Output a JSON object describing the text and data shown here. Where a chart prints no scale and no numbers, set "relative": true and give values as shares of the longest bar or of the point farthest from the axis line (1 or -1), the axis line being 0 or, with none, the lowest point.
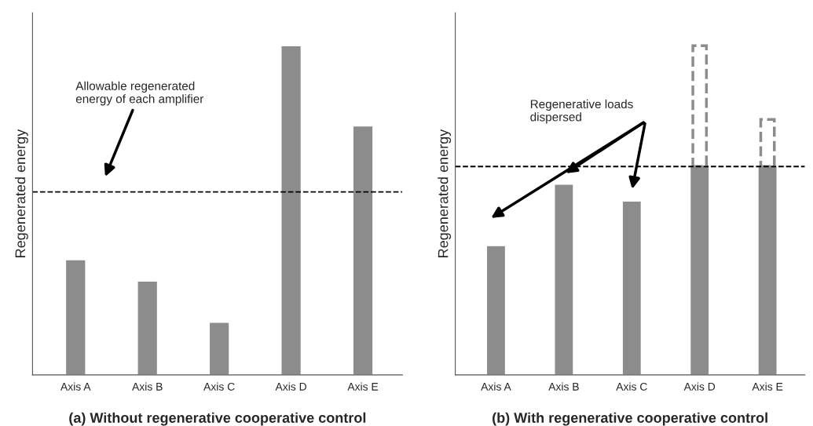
{
  "chart_data": [
    {
      "type": "bar",
      "relative": true,
      "title": "(a) Without regenerative cooperative control",
      "ylabel": "Regenerated energy",
      "categories": [
        "Axis A",
        "Axis B",
        "Axis C",
        "Axis D",
        "Axis E"
      ],
      "series": [
        {
          "color": "#8c8c8c",
          "values": [
            0.35,
            0.285,
            0.16,
            1,
            0.756
          ]
        }
      ],
      "ref_lines": [
        {
          "axis": "y",
          "value": 0.556,
          "color": "#000000",
          "line_style": "dashed"
        }
      ],
      "annotations": [
        "Allowable regenerated\nenergy of each amplifier"
      ],
      "legend": false,
      "grid": false
    },
    {
      "type": "bar",
      "relative": true,
      "title": "(b) With regenerative cooperative control",
      "ylabel": "Regenerated energy",
      "categories": [
        "Axis A",
        "Axis B",
        "Axis C",
        "Axis D",
        "Axis E"
      ],
      "series": [
        {
          "color": "#8c8c8c",
          "values": [
            0.393,
            0.579,
            0.528,
            0.633,
            0.633
          ]
        },
        {
          "color": "#8c8c8c",
          "line_style": "dashed",
          "values": [
            null,
            null,
            null,
            0.367,
            0.143
          ]
        }
      ],
      "stacked": true,
      "ref_lines": [
        {
          "axis": "y",
          "value": 0.633,
          "color": "#000000",
          "line_style": "dashed"
        }
      ],
      "annotations": [
        "Regenerative loads\ndispersed"
      ],
      "legend": false,
      "grid": false
    }
  ]
}
